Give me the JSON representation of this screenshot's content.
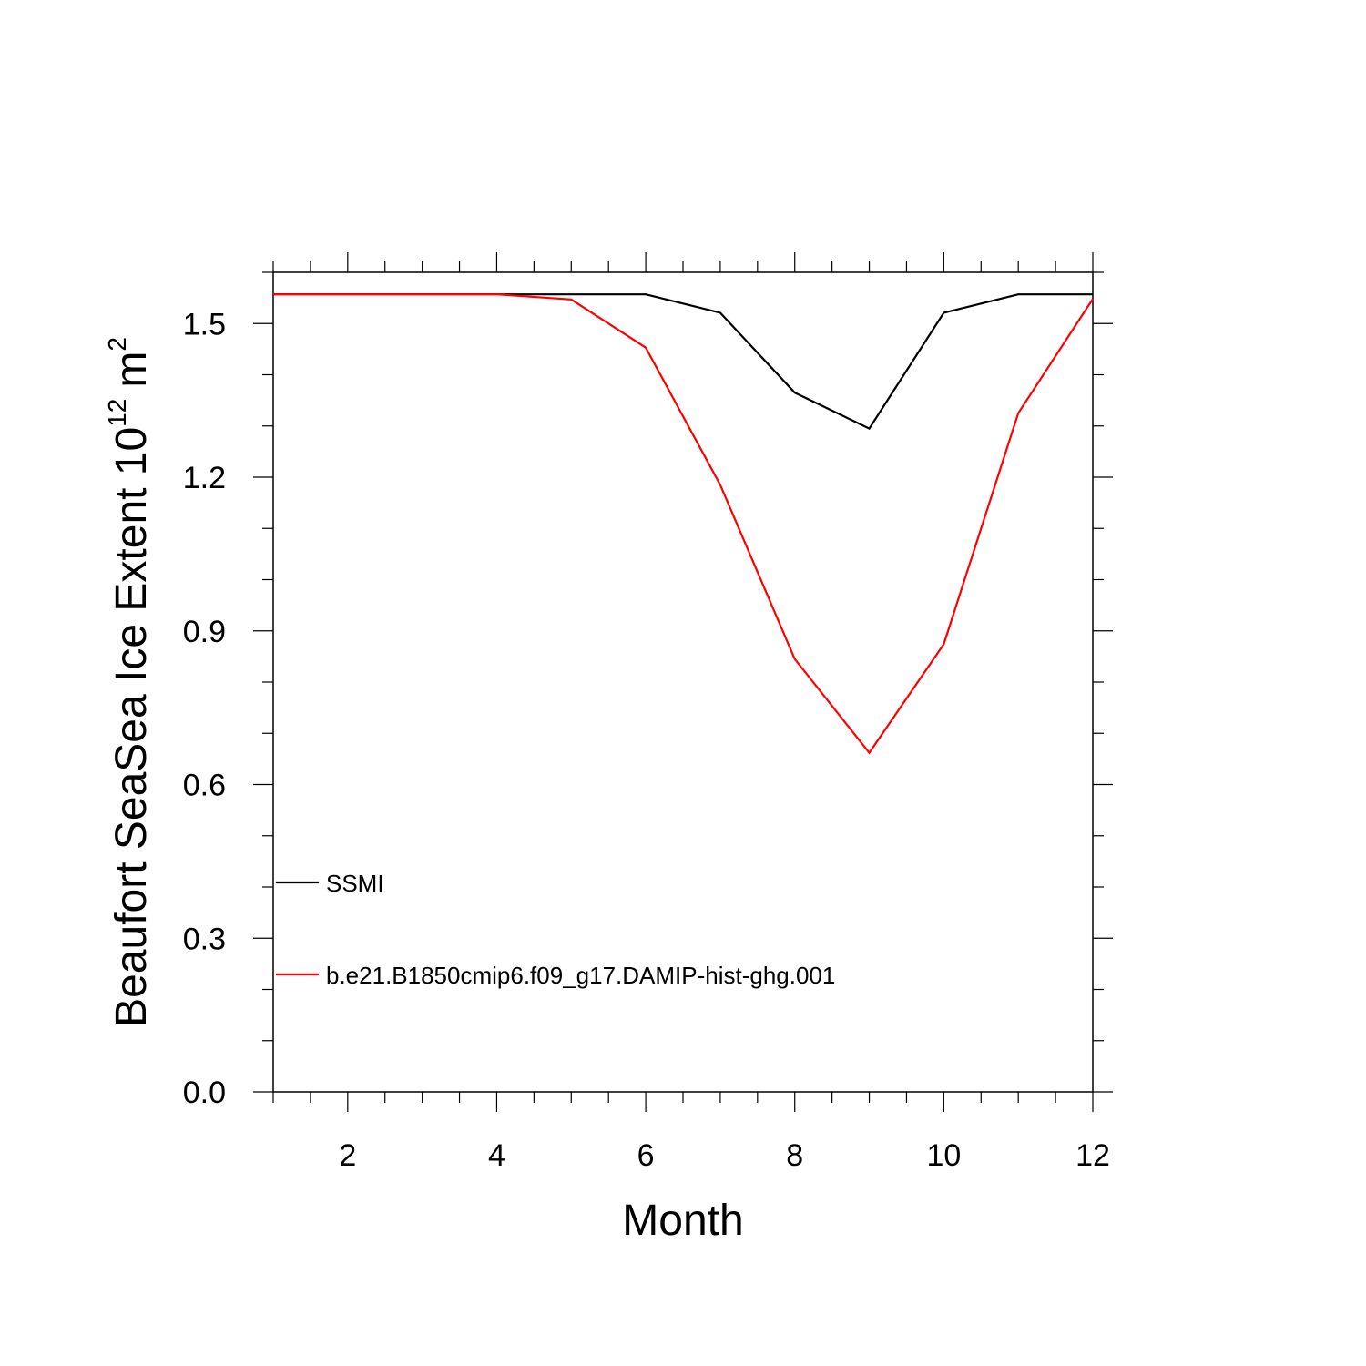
{
  "chart_data": {
    "type": "line",
    "xlabel": "Month",
    "ylabel": {
      "main": "Beaufort SeaSea Ice Extent 10",
      "exponent": "12",
      "unit": "m",
      "unit_exponent": "2"
    },
    "xlim": [
      1,
      12
    ],
    "ylim": [
      0.0,
      1.6
    ],
    "x_ticks": [
      2,
      4,
      6,
      8,
      10,
      12
    ],
    "x_tick_labels": [
      "2",
      "4",
      "6",
      "8",
      "10",
      "12"
    ],
    "y_ticks": [
      0.0,
      0.3,
      0.6,
      0.9,
      1.2,
      1.5
    ],
    "y_tick_labels": [
      "0.0",
      "0.3",
      "0.6",
      "0.9",
      "1.2",
      "1.5"
    ],
    "x": [
      1,
      2,
      3,
      4,
      5,
      6,
      7,
      8,
      9,
      10,
      11,
      12
    ],
    "series": [
      {
        "name": "SSMI",
        "color": "#000000",
        "values": [
          1.557,
          1.557,
          1.557,
          1.557,
          1.557,
          1.557,
          1.521,
          1.365,
          1.295,
          1.521,
          1.557,
          1.557
        ]
      },
      {
        "name": "b.e21.B1850cmip6.f09_g17.DAMIP-hist-ghg.001",
        "color": "#ff0000",
        "values": [
          1.557,
          1.557,
          1.557,
          1.557,
          1.547,
          1.453,
          1.185,
          0.845,
          0.662,
          0.874,
          1.325,
          1.548
        ]
      }
    ],
    "grid": false,
    "legend": "lower-left inside plot"
  }
}
